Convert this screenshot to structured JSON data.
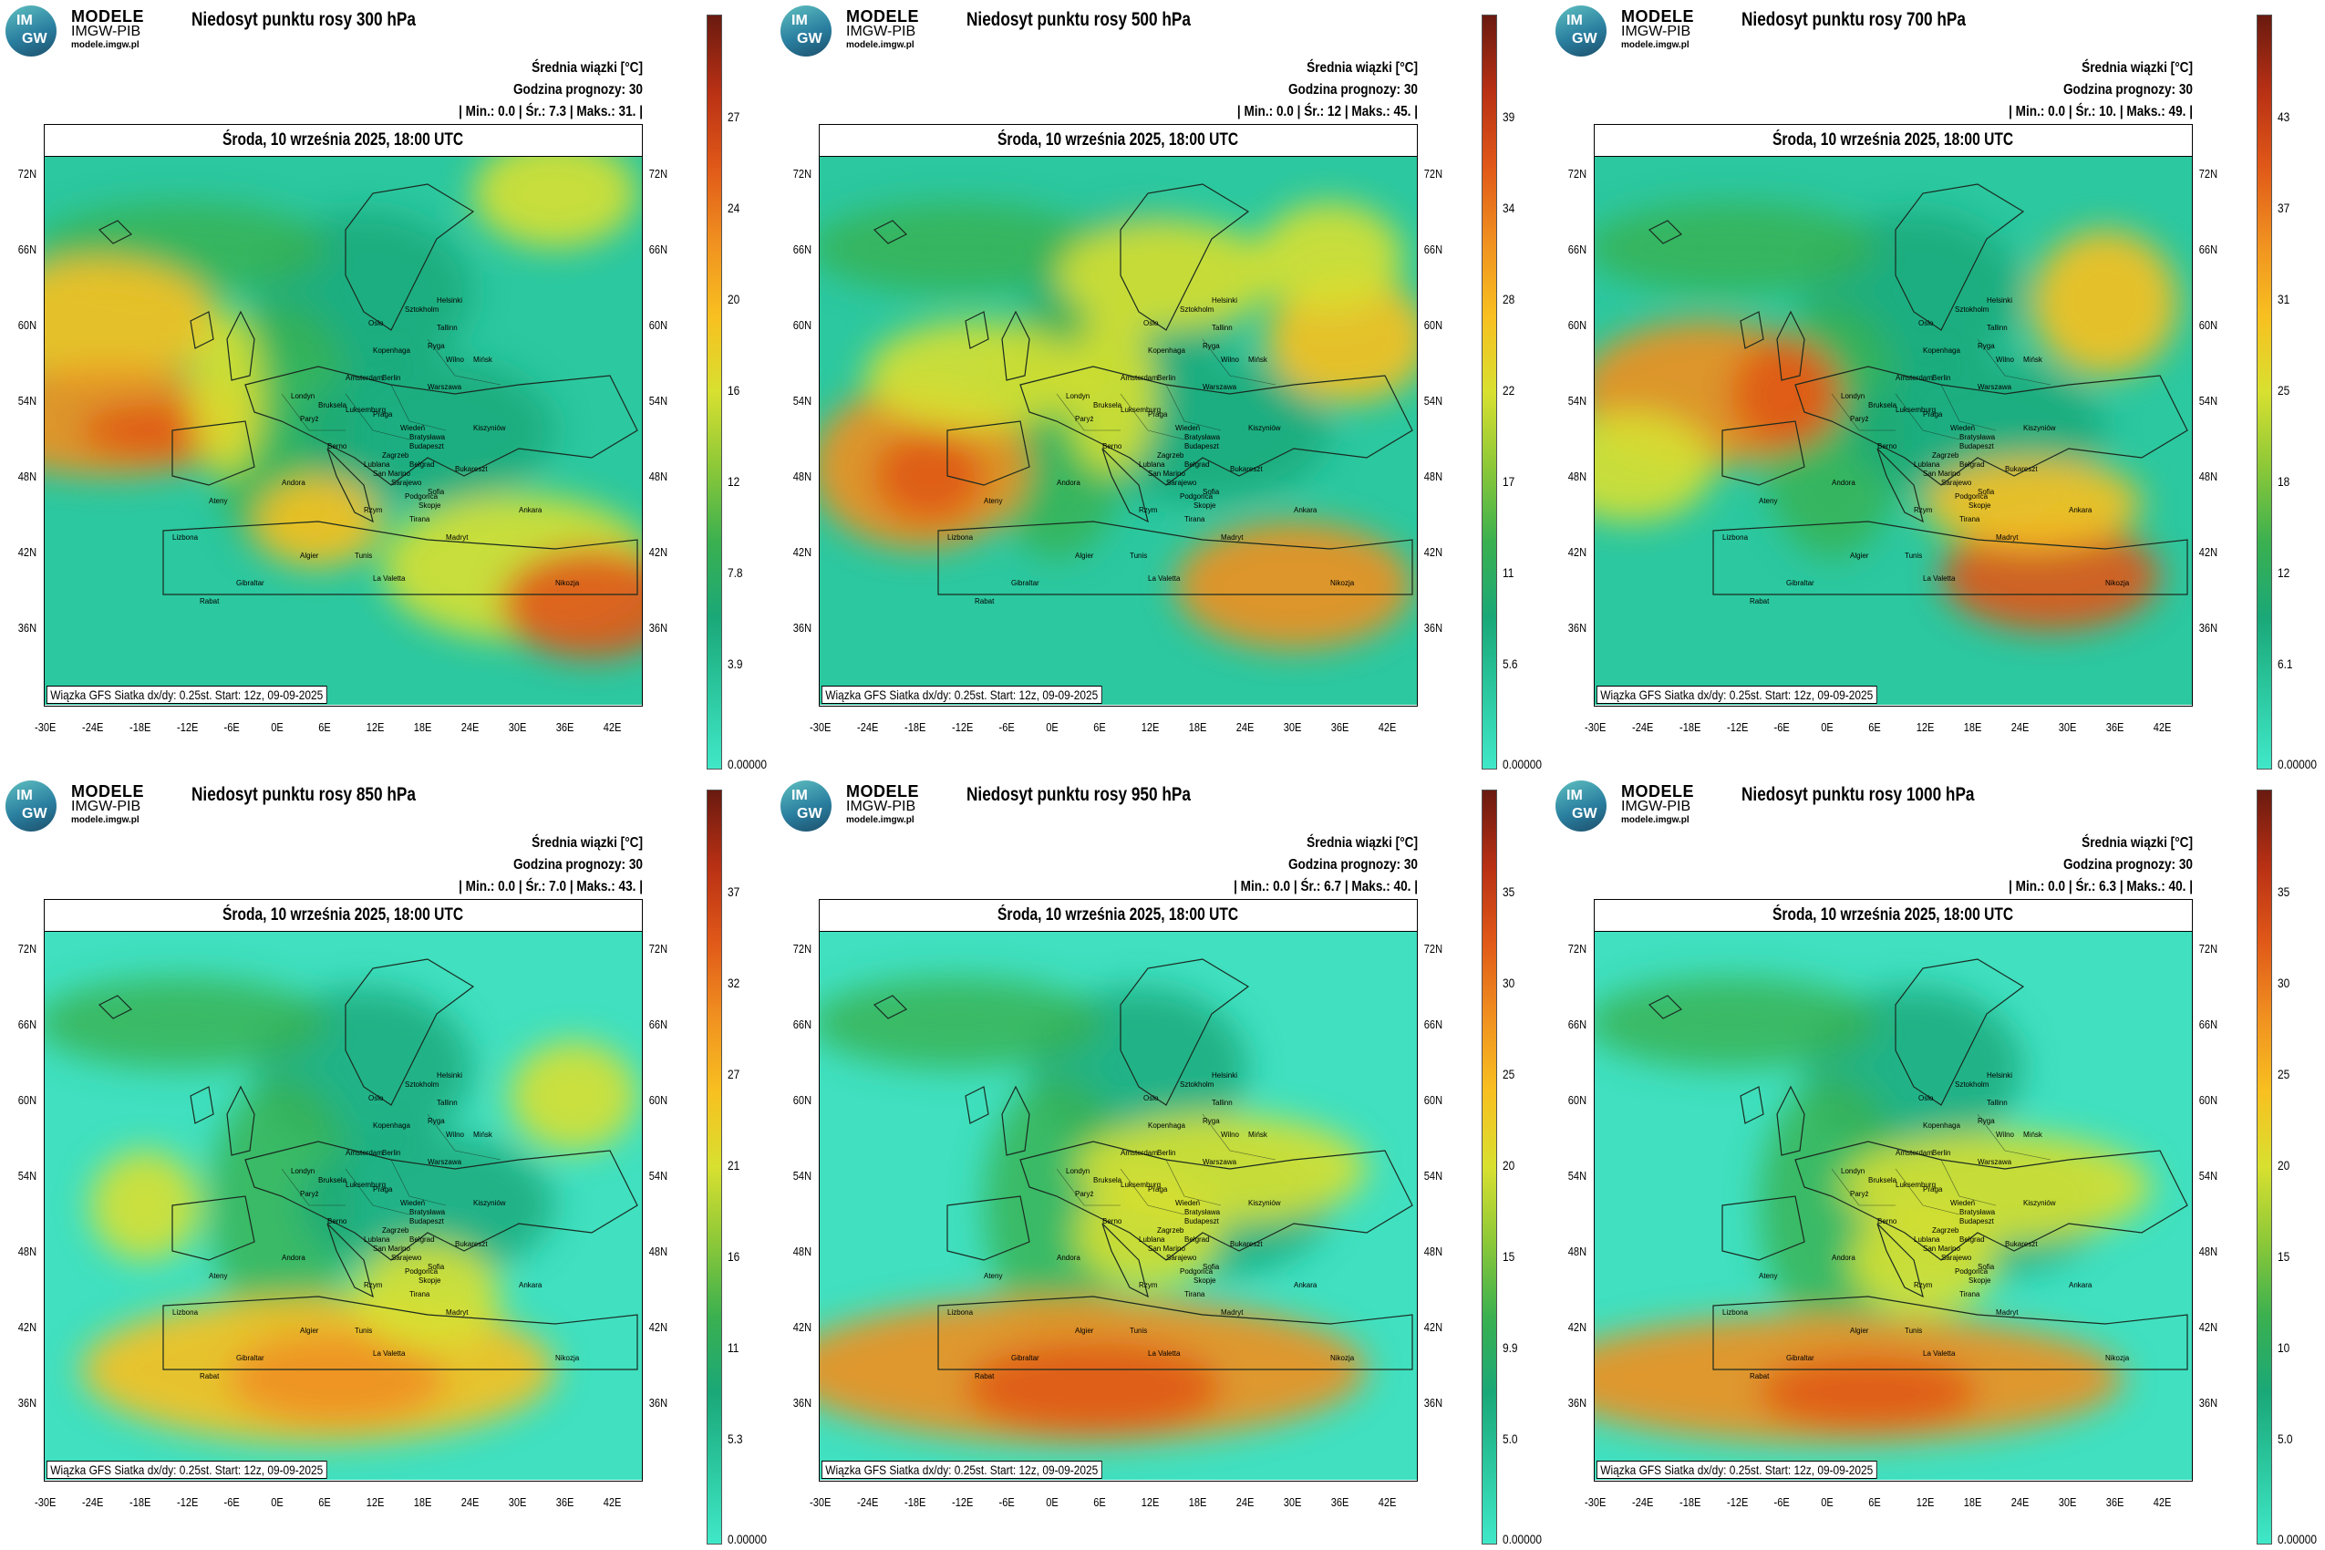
{
  "logo": {
    "name": "MODELE",
    "sub": "IMGW-PIB",
    "url": "modele.imgw.pl",
    "letters_top": "IM",
    "letters_bottom": "GW"
  },
  "common": {
    "avg_label": "Średnia wiązki [°C]",
    "forecast_hour": "Godzina prognozy: 30",
    "date": "Środa, 10 września 2025, 18:00 UTC",
    "footer": "Wiązka GFS Siatka dx/dy: 0.25st. Start: 12z, 09-09-2025",
    "lat_labels": [
      "72N",
      "66N",
      "60N",
      "54N",
      "48N",
      "42N",
      "36N"
    ],
    "lon_labels": [
      "-30E",
      "-24E",
      "-18E",
      "-12E",
      "-6E",
      "0E",
      "6E",
      "12E",
      "18E",
      "24E",
      "30E",
      "36E",
      "42E"
    ]
  },
  "colors": {
    "scale": [
      "#40e8c8",
      "#2cc8a0",
      "#1aa878",
      "#3ab050",
      "#8cc838",
      "#d8e030",
      "#f8c020",
      "#f09020",
      "#e05818",
      "#b83014",
      "#6a1a10"
    ]
  },
  "cities": [
    "Oslo",
    "Sztokholm",
    "Helsinki",
    "Tallinn",
    "Ryga",
    "Kopenhaga",
    "Wilno",
    "Mińsk",
    "Amsterdam",
    "Berlin",
    "Warszawa",
    "Londyn",
    "Bruksela",
    "Luksemburg",
    "Paryż",
    "Praga",
    "Wiedeń",
    "Bratysława",
    "Kiszyniów",
    "Budapeszt",
    "Berno",
    "Lublana",
    "Zagrzeb",
    "Belgrad",
    "Bukareszt",
    "San Marino",
    "Sarajewo",
    "Podgorica",
    "Sofia",
    "Skopje",
    "Tirana",
    "Andora",
    "Rzym",
    "Madryt",
    "Ateny",
    "Lizbona",
    "Algier",
    "Tunis",
    "La Valetta",
    "Gibraltar",
    "Rabat",
    "Nikozja",
    "Ankara"
  ],
  "panels": [
    {
      "title": "Niedosyt punktu rosy 300 hPa",
      "stats": "| Min.: 0.0 | Śr.: 7.3 | Maks.: 31. |",
      "scale_labels": [
        "27",
        "24",
        "20",
        "16",
        "12",
        "7.8",
        "3.9",
        "0.00000"
      ]
    },
    {
      "title": "Niedosyt punktu rosy 500 hPa",
      "stats": "| Min.: 0.0 | Śr.: 12 | Maks.: 45. |",
      "scale_labels": [
        "39",
        "34",
        "28",
        "22",
        "17",
        "11",
        "5.6",
        "0.00000"
      ]
    },
    {
      "title": "Niedosyt punktu rosy 700 hPa",
      "stats": "| Min.: 0.0 | Śr.: 10. | Maks.: 49. |",
      "scale_labels": [
        "43",
        "37",
        "31",
        "25",
        "18",
        "12",
        "6.1",
        "0.00000"
      ]
    },
    {
      "title": "Niedosyt punktu rosy 850 hPa",
      "stats": "| Min.: 0.0 | Śr.: 7.0 | Maks.: 43. |",
      "scale_labels": [
        "37",
        "32",
        "27",
        "21",
        "16",
        "11",
        "5.3",
        "0.00000"
      ]
    },
    {
      "title": "Niedosyt punktu rosy 950 hPa",
      "stats": "| Min.: 0.0 | Śr.: 6.7 | Maks.: 40. |",
      "scale_labels": [
        "35",
        "30",
        "25",
        "20",
        "15",
        "9.9",
        "5.0",
        "0.00000"
      ]
    },
    {
      "title": "Niedosyt punktu rosy 1000 hPa",
      "stats": "| Min.: 0.0 | Śr.: 6.3 | Maks.: 40. |",
      "scale_labels": [
        "35",
        "30",
        "25",
        "20",
        "15",
        "10",
        "5.0",
        "0.00000"
      ]
    }
  ]
}
